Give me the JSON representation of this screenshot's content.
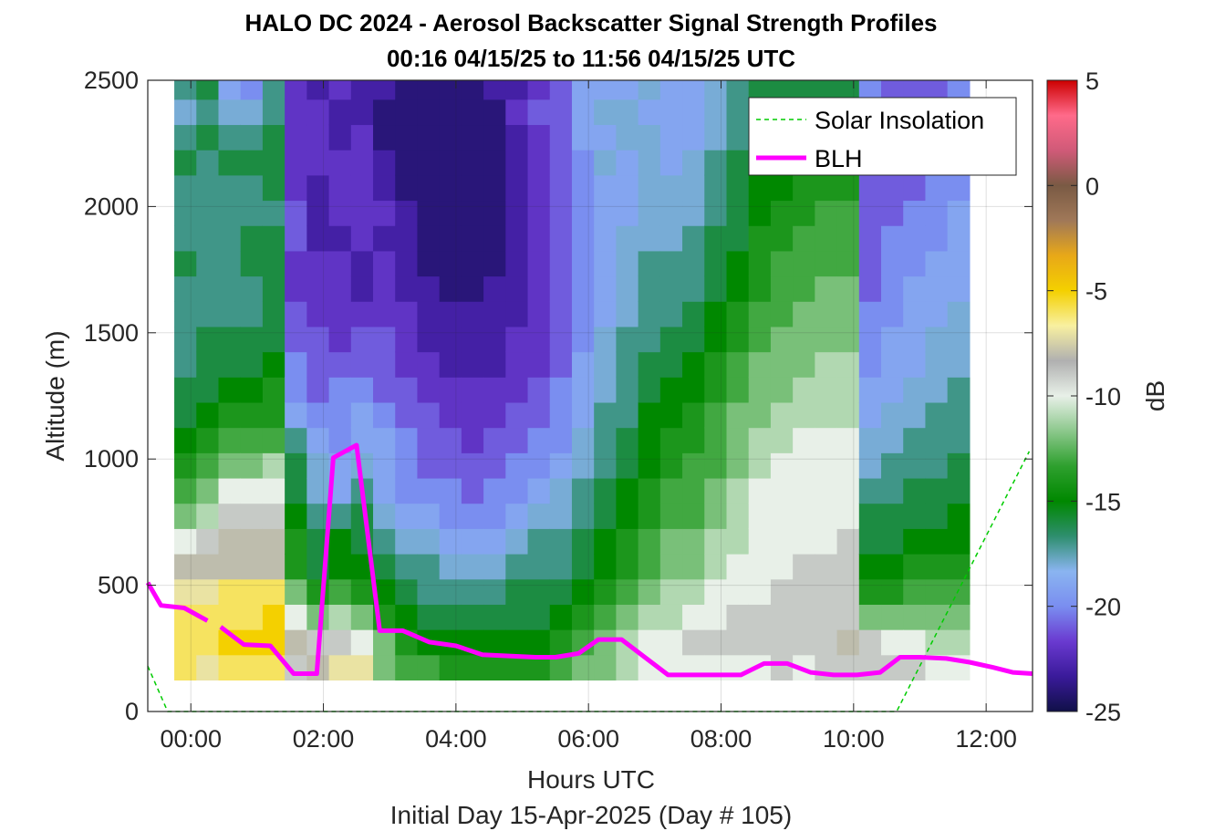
{
  "chart_data": {
    "type": "heatmap",
    "title": "HALO DC 2024 - Aerosol Backscatter Signal Strength Profiles",
    "subtitle": "00:16 04/15/25 to 11:56 04/15/25  UTC",
    "xlabel": "Hours UTC",
    "xlabel2": "Initial Day 15-Apr-2025 (Day # 105)",
    "ylabel": "Altitude (m)",
    "colorbar_label": "dB",
    "xlim": [
      -0.65,
      12.7
    ],
    "ylim": [
      0,
      2500
    ],
    "clim": [
      -25,
      5
    ],
    "x_ticks": [
      0,
      2,
      4,
      6,
      8,
      10,
      12
    ],
    "x_tick_labels": [
      "00:00",
      "02:00",
      "04:00",
      "06:00",
      "08:00",
      "10:00",
      "12:00"
    ],
    "y_ticks": [
      0,
      500,
      1000,
      1500,
      2000,
      2500
    ],
    "y_tick_labels": [
      "0",
      "500",
      "1000",
      "1500",
      "2000",
      "2500"
    ],
    "c_ticks": [
      5,
      0,
      -5,
      -10,
      -15,
      -20,
      -25
    ],
    "c_tick_labels": [
      "5",
      "0",
      "-5",
      "-10",
      "-15",
      "-20",
      "-25"
    ],
    "grid": true,
    "legend_position": "top-right",
    "colors": {
      "solar": "#00cc00",
      "blh": "#ff00ff",
      "colormap": [
        "#101048",
        "#3a1a9a",
        "#6a3ad0",
        "#7a8ef0",
        "#8ab4f0",
        "#2e8e6e",
        "#008800",
        "#2ea02e",
        "#8cc88c",
        "#e8f0e8",
        "#b0b0b0",
        "#f8f0a0",
        "#f4d000",
        "#e8a818",
        "#a07858",
        "#7a5a44",
        "#d05a78",
        "#ff6a8a",
        "#cc0000"
      ]
    },
    "heatmap": {
      "x_start": -0.25,
      "x_step": 0.3333,
      "y_start": 125,
      "y_step": 100,
      "columns": [
        [
          -6,
          -6,
          -6,
          -7,
          -8,
          -10,
          -12,
          -13,
          -14,
          -15,
          -16,
          -16,
          -17,
          -17,
          -17,
          -17,
          -16,
          -17,
          -17,
          -17,
          -16,
          -17,
          -18,
          -17
        ],
        [
          -7,
          -6,
          -6,
          -7,
          -8,
          -9,
          -11,
          -12,
          -13,
          -14,
          -15,
          -16,
          -16,
          -16,
          -17,
          -17,
          -17,
          -17,
          -17,
          -17,
          -17,
          -16,
          -17,
          -16
        ],
        [
          -6,
          -5,
          -6,
          -6,
          -8,
          -8,
          -9,
          -10,
          -12,
          -13,
          -14,
          -15,
          -16,
          -16,
          -17,
          -17,
          -17,
          -17,
          -17,
          -17,
          -16,
          -17,
          -18,
          -19
        ],
        [
          -6,
          -5,
          -6,
          -6,
          -8,
          -8,
          -9,
          -10,
          -12,
          -13,
          -14,
          -15,
          -16,
          -16,
          -17,
          -17,
          -16,
          -16,
          -17,
          -17,
          -16,
          -17,
          -18,
          -20
        ],
        [
          -6,
          -5,
          -5,
          -6,
          -8,
          -8,
          -9,
          -10,
          -11,
          -13,
          -14,
          -14,
          -15,
          -16,
          -16,
          -16,
          -16,
          -16,
          -17,
          -16,
          -16,
          -16,
          -17,
          -17
        ],
        [
          -9,
          -8,
          -10,
          -12,
          -14,
          -14,
          -15,
          -16,
          -16,
          -17,
          -19,
          -20,
          -20,
          -21,
          -21,
          -22,
          -22,
          -21,
          -21,
          -22,
          -22,
          -22,
          -22,
          -22
        ],
        [
          -8,
          -9,
          -12,
          -14,
          -16,
          -16,
          -17,
          -18,
          -18,
          -19,
          -20,
          -21,
          -21,
          -21,
          -22,
          -22,
          -22,
          -23,
          -23,
          -23,
          -22,
          -22,
          -22,
          -23
        ],
        [
          -7,
          -9,
          -11,
          -13,
          -15,
          -15,
          -17,
          -19,
          -19,
          -20,
          -20,
          -20,
          -21,
          -22,
          -22,
          -22,
          -22,
          -23,
          -22,
          -22,
          -22,
          -23,
          -23,
          -22
        ],
        [
          -7,
          -10,
          -12,
          -14,
          -15,
          -16,
          -16,
          -17,
          -18,
          -19,
          -19,
          -20,
          -21,
          -21,
          -22,
          -23,
          -23,
          -22,
          -22,
          -22,
          -22,
          -22,
          -23,
          -23
        ],
        [
          -12,
          -12,
          -14,
          -15,
          -16,
          -17,
          -18,
          -19,
          -19,
          -19,
          -20,
          -21,
          -21,
          -21,
          -22,
          -22,
          -22,
          -23,
          -22,
          -23,
          -23,
          -24,
          -24,
          -23
        ],
        [
          -13,
          -14,
          -15,
          -16,
          -17,
          -18,
          -19,
          -20,
          -20,
          -20,
          -21,
          -21,
          -22,
          -22,
          -22,
          -23,
          -23,
          -23,
          -23,
          -24,
          -24,
          -24,
          -24,
          -24
        ],
        [
          -13,
          -15,
          -16,
          -17,
          -17,
          -18,
          -19,
          -20,
          -21,
          -21,
          -21,
          -22,
          -22,
          -23,
          -23,
          -23,
          -24,
          -24,
          -24,
          -24,
          -24,
          -24,
          -24,
          -24
        ],
        [
          -14,
          -15,
          -16,
          -17,
          -18,
          -19,
          -20,
          -20,
          -21,
          -21,
          -22,
          -22,
          -23,
          -23,
          -23,
          -24,
          -24,
          -24,
          -24,
          -24,
          -24,
          -24,
          -24,
          -24
        ],
        [
          -14,
          -15,
          -16,
          -17,
          -18,
          -19,
          -20,
          -21,
          -21,
          -22,
          -22,
          -22,
          -23,
          -23,
          -23,
          -24,
          -24,
          -24,
          -24,
          -24,
          -24,
          -24,
          -24,
          -24
        ],
        [
          -14,
          -15,
          -16,
          -17,
          -18,
          -19,
          -20,
          -20,
          -21,
          -21,
          -22,
          -22,
          -23,
          -23,
          -23,
          -23,
          -24,
          -24,
          -24,
          -24,
          -24,
          -24,
          -24,
          -23
        ],
        [
          -14,
          -15,
          -16,
          -16,
          -17,
          -18,
          -19,
          -20,
          -20,
          -21,
          -21,
          -22,
          -22,
          -22,
          -23,
          -23,
          -23,
          -23,
          -23,
          -23,
          -23,
          -23,
          -22,
          -23
        ],
        [
          -14,
          -15,
          -16,
          -16,
          -17,
          -17,
          -18,
          -19,
          -20,
          -20,
          -21,
          -21,
          -22,
          -22,
          -22,
          -22,
          -22,
          -22,
          -22,
          -22,
          -22,
          -22,
          -21,
          -22
        ],
        [
          -13,
          -14,
          -15,
          -16,
          -17,
          -17,
          -18,
          -18,
          -19,
          -20,
          -20,
          -20,
          -21,
          -21,
          -21,
          -21,
          -21,
          -21,
          -21,
          -21,
          -21,
          -21,
          -21,
          -21
        ],
        [
          -12,
          -13,
          -14,
          -15,
          -16,
          -16,
          -17,
          -17,
          -18,
          -18,
          -19,
          -19,
          -19,
          -20,
          -20,
          -20,
          -20,
          -20,
          -20,
          -20,
          -20,
          -19,
          -19,
          -19
        ],
        [
          -12,
          -12,
          -13,
          -14,
          -15,
          -15,
          -16,
          -16,
          -17,
          -17,
          -17,
          -18,
          -18,
          -18,
          -19,
          -19,
          -19,
          -19,
          -19,
          -19,
          -18,
          -19,
          -18,
          -19
        ],
        [
          -11,
          -11,
          -12,
          -13,
          -14,
          -14,
          -15,
          -15,
          -16,
          -16,
          -17,
          -17,
          -17,
          -17,
          -18,
          -18,
          -18,
          -18,
          -19,
          -19,
          -19,
          -18,
          -18,
          -19
        ],
        [
          -10,
          -10,
          -11,
          -12,
          -13,
          -13,
          -14,
          -14,
          -15,
          -15,
          -15,
          -16,
          -16,
          -17,
          -17,
          -17,
          -17,
          -18,
          -18,
          -18,
          -18,
          -18,
          -19,
          -18
        ],
        [
          -10,
          -10,
          -11,
          -11,
          -12,
          -12,
          -13,
          -13,
          -14,
          -14,
          -15,
          -15,
          -16,
          -16,
          -17,
          -17,
          -17,
          -18,
          -18,
          -18,
          -19,
          -19,
          -19,
          -19
        ],
        [
          -10,
          -9,
          -10,
          -11,
          -12,
          -12,
          -13,
          -13,
          -13,
          -14,
          -14,
          -15,
          -15,
          -16,
          -16,
          -17,
          -17,
          -17,
          -18,
          -18,
          -18,
          -19,
          -19,
          -19
        ],
        [
          -10,
          -9,
          -10,
          -10,
          -11,
          -11,
          -12,
          -12,
          -13,
          -13,
          -13,
          -14,
          -14,
          -15,
          -15,
          -16,
          -16,
          -16,
          -17,
          -17,
          -17,
          -18,
          -18,
          -18
        ],
        [
          -10,
          -9,
          -9,
          -10,
          -10,
          -11,
          -11,
          -11,
          -12,
          -12,
          -12,
          -13,
          -13,
          -14,
          -14,
          -15,
          -15,
          -16,
          -16,
          -16,
          -16,
          -17,
          -17,
          -17
        ],
        [
          -10,
          -9,
          -9,
          -10,
          -10,
          -10,
          -10,
          -10,
          -11,
          -11,
          -12,
          -12,
          -12,
          -13,
          -13,
          -14,
          -14,
          -14,
          -15,
          -15,
          -16,
          -16,
          -16,
          -16
        ],
        [
          -9,
          -9,
          -9,
          -9,
          -10,
          -10,
          -10,
          -10,
          -10,
          -11,
          -11,
          -12,
          -12,
          -12,
          -13,
          -13,
          -13,
          -14,
          -14,
          -15,
          -15,
          -16,
          -16,
          -16
        ],
        [
          -10,
          -9,
          -9,
          -9,
          -9,
          -10,
          -10,
          -10,
          -10,
          -10,
          -11,
          -11,
          -12,
          -12,
          -12,
          -13,
          -13,
          -13,
          -14,
          -14,
          -15,
          -15,
          -15,
          -16
        ],
        [
          -9,
          -9,
          -9,
          -9,
          -9,
          -10,
          -10,
          -10,
          -10,
          -10,
          -11,
          -11,
          -11,
          -12,
          -12,
          -12,
          -13,
          -13,
          -13,
          -14,
          -14,
          -15,
          -15,
          -16
        ],
        [
          -9,
          -8,
          -9,
          -9,
          -9,
          -9,
          -10,
          -10,
          -10,
          -10,
          -11,
          -11,
          -11,
          -12,
          -12,
          -12,
          -13,
          -13,
          -13,
          -14,
          -14,
          -15,
          -15,
          -16
        ],
        [
          -9,
          -9,
          -12,
          -14,
          -15,
          -16,
          -16,
          -17,
          -18,
          -18,
          -19,
          -19,
          -20,
          -20,
          -20,
          -21,
          -21,
          -21,
          -21,
          -21,
          -21,
          -21,
          -20,
          -20
        ],
        [
          -9,
          -10,
          -12,
          -14,
          -15,
          -16,
          -16,
          -17,
          -17,
          -18,
          -18,
          -19,
          -19,
          -19,
          -20,
          -20,
          -20,
          -20,
          -21,
          -21,
          -21,
          -21,
          -21,
          -21
        ],
        [
          -9,
          -10,
          -12,
          -13,
          -14,
          -15,
          -16,
          -16,
          -17,
          -17,
          -18,
          -18,
          -19,
          -19,
          -19,
          -19,
          -20,
          -20,
          -20,
          -21,
          -21,
          -21,
          -21,
          -21
        ],
        [
          -10,
          -11,
          -12,
          -13,
          -14,
          -15,
          -16,
          -16,
          -17,
          -17,
          -17,
          -18,
          -18,
          -18,
          -19,
          -19,
          -19,
          -20,
          -20,
          -20,
          -20,
          -21,
          -21,
          -21
        ],
        [
          -10,
          -11,
          -12,
          -13,
          -14,
          -15,
          -15,
          -16,
          -16,
          -17,
          -17,
          -17,
          -18,
          -18,
          -18,
          -19,
          -19,
          -19,
          -19,
          -20,
          -20,
          -20,
          -20,
          -20
        ]
      ]
    },
    "series": [
      {
        "name": "Solar Insolation",
        "style": "dashed",
        "x": [
          -0.65,
          -0.35,
          10.65,
          12.65
        ],
        "y": [
          180,
          0,
          0,
          1030
        ]
      },
      {
        "name": "BLH",
        "style": "solid",
        "segments": [
          {
            "x": [
              -0.65,
              -0.45,
              -0.1,
              0.25
            ],
            "y": [
              510,
              420,
              410,
              360
            ]
          },
          {
            "x": [
              0.45,
              0.8,
              1.2,
              1.55,
              1.9,
              2.15,
              2.5,
              2.85,
              3.2,
              3.6,
              4.0,
              4.4,
              4.8,
              5.2,
              5.5,
              5.85,
              6.15,
              6.5,
              6.85,
              7.2,
              7.55,
              7.9,
              8.3,
              8.65,
              9.0,
              9.35,
              9.7,
              10.05,
              10.4,
              10.7,
              11.0,
              11.4,
              11.75,
              12.1,
              12.4,
              12.7
            ],
            "y": [
              335,
              265,
              260,
              150,
              150,
              1005,
              1055,
              320,
              320,
              275,
              260,
              225,
              220,
              215,
              215,
              230,
              285,
              285,
              215,
              145,
              145,
              145,
              145,
              190,
              190,
              155,
              145,
              145,
              155,
              215,
              215,
              210,
              195,
              175,
              155,
              150
            ]
          }
        ]
      }
    ]
  }
}
